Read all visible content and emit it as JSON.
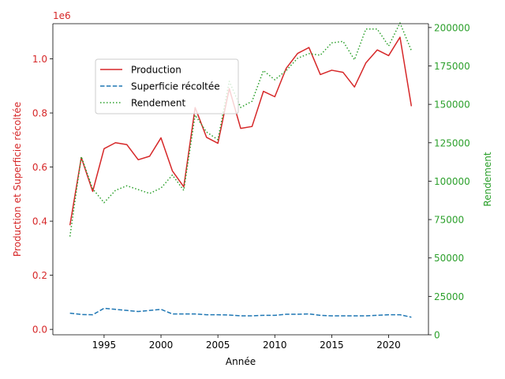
{
  "chart_data": {
    "type": "line",
    "title": "",
    "xlabel": "Année",
    "ylabel_left": "Production et Superficie récoltée",
    "ylabel_right": "Rendement",
    "left_offset_label": "1e6",
    "x": [
      1992,
      1993,
      1994,
      1995,
      1996,
      1997,
      1998,
      1999,
      2000,
      2001,
      2002,
      2003,
      2004,
      2005,
      2006,
      2007,
      2008,
      2009,
      2010,
      2011,
      2012,
      2013,
      2014,
      2015,
      2016,
      2017,
      2018,
      2019,
      2020,
      2021,
      2022
    ],
    "xlim": [
      1990.5,
      2023.5
    ],
    "xticks": [
      "1995",
      "2000",
      "2005",
      "2010",
      "2015",
      "2020"
    ],
    "ylim_left": [
      -0.02,
      1.13
    ],
    "yticks_left": [
      "0.0",
      "0.2",
      "0.4",
      "0.6",
      "0.8",
      "1.0"
    ],
    "ylim_right": [
      0,
      202500
    ],
    "yticks_right": [
      "0",
      "25000",
      "50000",
      "75000",
      "100000",
      "125000",
      "150000",
      "175000",
      "200000"
    ],
    "colors": {
      "left_axis": "#d62728",
      "right_axis": "#2ca02c"
    },
    "series": [
      {
        "name": "Production",
        "axis": "left",
        "style": "solid",
        "color": "#d62728",
        "values": [
          0.385,
          0.635,
          0.51,
          0.668,
          0.69,
          0.683,
          0.627,
          0.64,
          0.708,
          0.586,
          0.527,
          0.82,
          0.71,
          0.688,
          0.89,
          0.743,
          0.75,
          0.88,
          0.86,
          0.965,
          1.02,
          1.042,
          0.942,
          0.958,
          0.95,
          0.896,
          0.985,
          1.033,
          1.012,
          1.08,
          0.825
        ]
      },
      {
        "name": "Superficie récoltée",
        "axis": "left",
        "style": "dashed",
        "color": "#1f77b4",
        "values": [
          0.06,
          0.055,
          0.054,
          0.078,
          0.074,
          0.07,
          0.066,
          0.07,
          0.074,
          0.057,
          0.057,
          0.057,
          0.054,
          0.054,
          0.053,
          0.05,
          0.05,
          0.052,
          0.052,
          0.056,
          0.056,
          0.057,
          0.052,
          0.05,
          0.05,
          0.05,
          0.05,
          0.052,
          0.054,
          0.054,
          0.045
        ]
      },
      {
        "name": "Rendement",
        "axis": "right",
        "style": "dotted",
        "color": "#2ca02c",
        "values": [
          64000,
          116000,
          95000,
          86000,
          94000,
          97000,
          94500,
          92000,
          95500,
          104000,
          94000,
          143000,
          132000,
          127000,
          165000,
          148000,
          152000,
          172000,
          166000,
          172000,
          180000,
          183000,
          182000,
          190000,
          191000,
          179000,
          199000,
          199000,
          188000,
          203000,
          185000
        ]
      }
    ],
    "legend": {
      "position": "upper-left-inset",
      "entries": [
        "Production",
        "Superficie récoltée",
        "Rendement"
      ]
    }
  }
}
